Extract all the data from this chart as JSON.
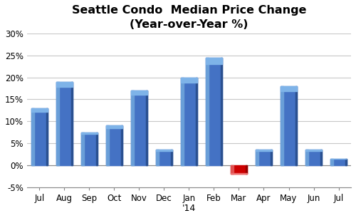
{
  "categories": [
    "Jul",
    "Aug",
    "Sep",
    "Oct",
    "Nov",
    "Dec",
    "Jan",
    "Feb",
    "Mar",
    "Apr",
    "May",
    "Jun",
    "Jul"
  ],
  "values": [
    0.13,
    0.19,
    0.075,
    0.09,
    0.17,
    0.035,
    0.2,
    0.245,
    -0.02,
    0.035,
    0.18,
    0.035,
    0.015
  ],
  "bar_colors": [
    "#4472C4",
    "#4472C4",
    "#4472C4",
    "#4472C4",
    "#4472C4",
    "#4472C4",
    "#4472C4",
    "#4472C4",
    "#CC0000",
    "#4472C4",
    "#4472C4",
    "#4472C4",
    "#4472C4"
  ],
  "bar_highlight": [
    "#6A9FD8",
    "#6A9FD8",
    "#6A9FD8",
    "#6A9FD8",
    "#6A9FD8",
    "#6A9FD8",
    "#6A9FD8",
    "#6A9FD8",
    "#E05050",
    "#6A9FD8",
    "#6A9FD8",
    "#6A9FD8",
    "#6A9FD8"
  ],
  "bar_top": [
    "#7EB3E8",
    "#7EB3E8",
    "#7EB3E8",
    "#7EB3E8",
    "#7EB3E8",
    "#7EB3E8",
    "#7EB3E8",
    "#7EB3E8",
    "#EE7070",
    "#7EB3E8",
    "#7EB3E8",
    "#7EB3E8",
    "#7EB3E8"
  ],
  "title_line1": "Seattle Condo  Median Price Change",
  "title_line2": "(Year-over-Year %)",
  "xlabel": "'14",
  "ylim": [
    -0.05,
    0.3
  ],
  "yticks": [
    -0.05,
    0.0,
    0.05,
    0.1,
    0.15,
    0.2,
    0.25,
    0.3
  ],
  "ytick_labels": [
    "-5%",
    "0%",
    "5%",
    "10%",
    "15%",
    "20%",
    "25%",
    "30%"
  ],
  "background_color": "#FFFFFF",
  "grid_color": "#C8C8C8",
  "title_fontsize": 11.5,
  "axis_fontsize": 9,
  "tick_fontsize": 8.5
}
